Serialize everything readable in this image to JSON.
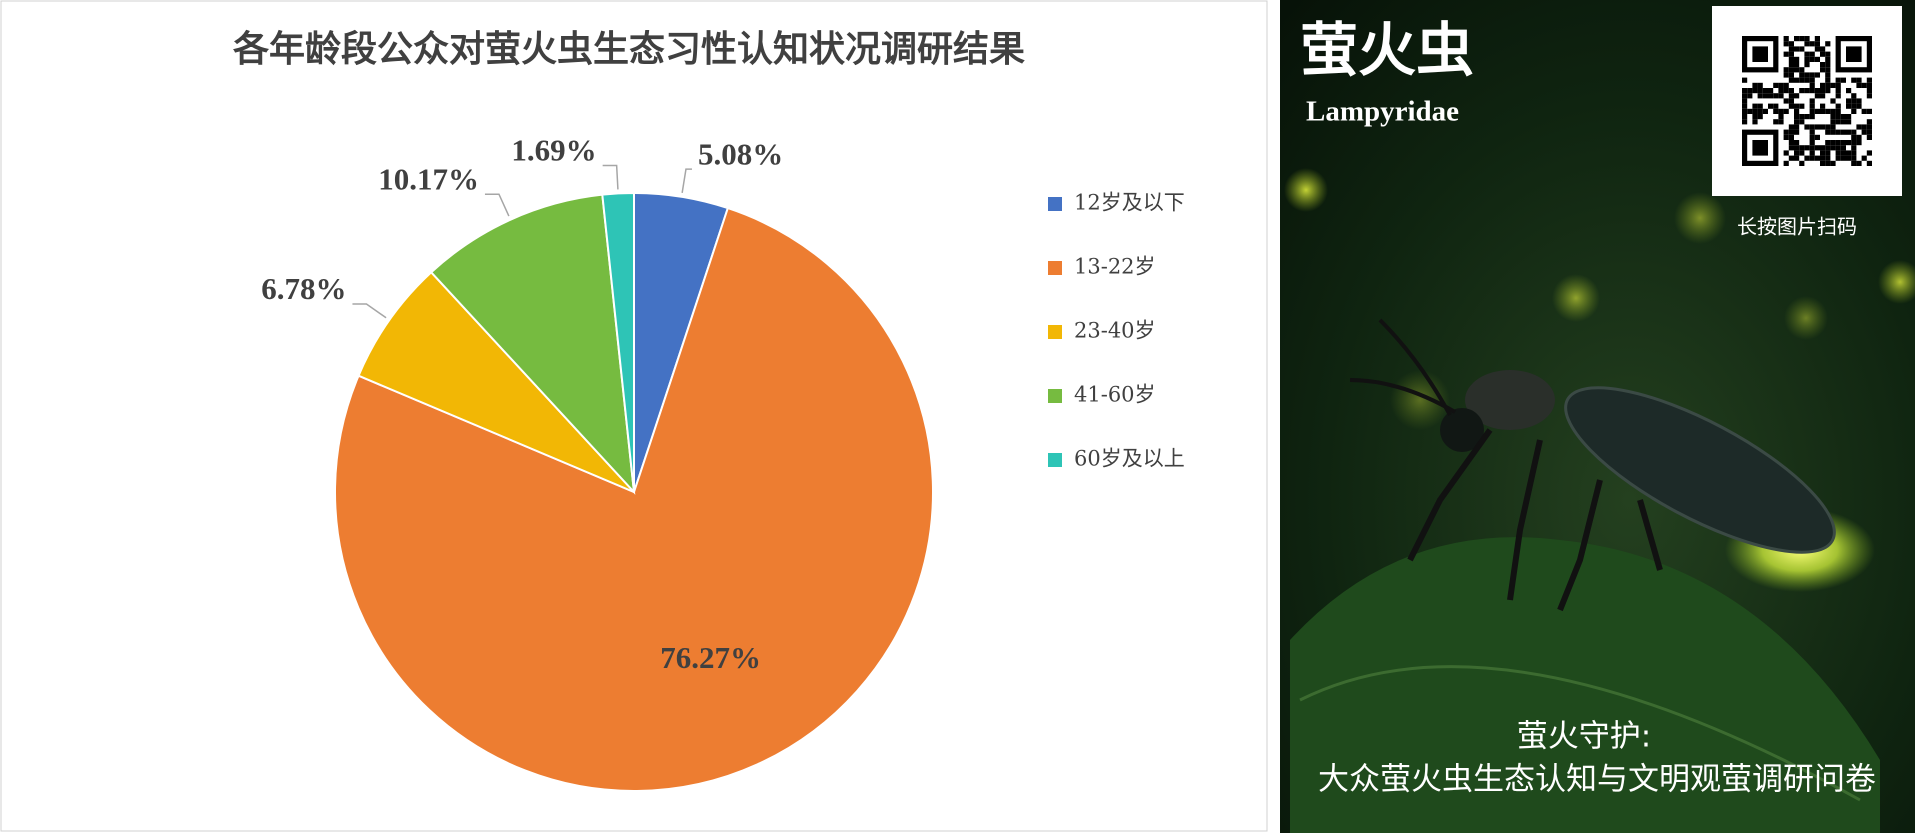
{
  "chart_data": {
    "type": "pie",
    "title": "各年龄段公众对萤火虫生态习性认知状况调研结果",
    "categories": [
      "12岁及以下",
      "13-22岁",
      "23-40岁",
      "41-60岁",
      "60岁及以上"
    ],
    "values": [
      5.08,
      76.27,
      6.78,
      10.17,
      1.69
    ],
    "value_labels": [
      "5.08%",
      "76.27%",
      "6.78%",
      "10.17%",
      "1.69%"
    ],
    "colors": [
      "#4472c4",
      "#ed7d31",
      "#f2b705",
      "#76bb40",
      "#2ec4b6"
    ],
    "legend": "right"
  },
  "poster": {
    "title": "萤火虫",
    "latin": "Lampyridae",
    "qr_hint": "长按图片扫码",
    "subtitle": "萤火守护:",
    "caption": "大众萤火虫生态认知与文明观萤调研问卷"
  }
}
